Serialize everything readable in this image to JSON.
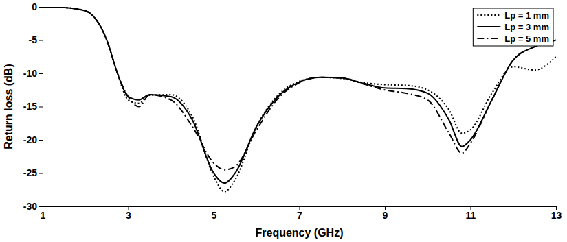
{
  "chart_data": {
    "type": "line",
    "x_label": "Frequency (GHz)",
    "y_label": "Return loss (dB)",
    "x": [
      1,
      1.5,
      2,
      2.5,
      2.75,
      3,
      3.25,
      3.5,
      4,
      4.5,
      5,
      5.25,
      5.5,
      6,
      6.5,
      7,
      7.5,
      8,
      8.5,
      9,
      9.5,
      10,
      10.5,
      10.8,
      11,
      11.5,
      12,
      12.5,
      13
    ],
    "series": [
      {
        "name": "Lp = 1 mm",
        "color": "#000000",
        "line_style": "dotted",
        "values": [
          0,
          -0.1,
          -0.6,
          -5,
          -10,
          -14,
          -14.5,
          -13.3,
          -13.2,
          -16.5,
          -25.5,
          -27.8,
          -26,
          -18,
          -13.3,
          -11.2,
          -10.6,
          -10.8,
          -11.4,
          -11.7,
          -11.8,
          -12.5,
          -15.5,
          -19,
          -18.5,
          -13,
          -9,
          -9.5,
          -7.5
        ]
      },
      {
        "name": "Lp = 3 mm",
        "color": "#000000",
        "line_style": "solid",
        "values": [
          0,
          -0.1,
          -0.6,
          -5,
          -10,
          -13.5,
          -14,
          -13.2,
          -13.5,
          -17,
          -25,
          -26.5,
          -25,
          -18,
          -13.5,
          -11.3,
          -10.6,
          -10.7,
          -11.5,
          -12.2,
          -12.3,
          -13,
          -17,
          -21,
          -20,
          -14,
          -8,
          -6,
          -5
        ]
      },
      {
        "name": "Lp = 5 mm",
        "color": "#000000",
        "line_style": "dashdot",
        "values": [
          0,
          -0.1,
          -0.6,
          -5,
          -10,
          -13.5,
          -15,
          -13.2,
          -14,
          -18,
          -23.5,
          -24.5,
          -24,
          -18.5,
          -13.8,
          -11.4,
          -10.6,
          -10.7,
          -11.6,
          -12.5,
          -13,
          -14,
          -19,
          -22,
          -20.5,
          -14,
          -8,
          -6,
          -5
        ]
      }
    ],
    "xlim": [
      1,
      13
    ],
    "xticks": [
      1,
      3,
      5,
      7,
      9,
      11,
      13
    ],
    "ylim": [
      -30,
      0
    ],
    "yticks": [
      -30,
      -25,
      -20,
      -15,
      -10,
      -5,
      0
    ],
    "grid": false,
    "legend": "top-right"
  }
}
